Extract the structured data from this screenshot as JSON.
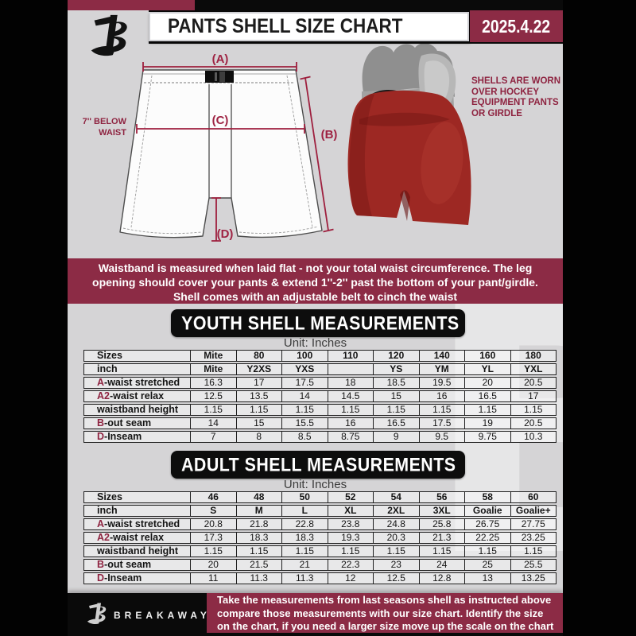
{
  "header": {
    "title": "PANTS SHELL SIZE CHART",
    "date": "2025.4.22"
  },
  "diagram": {
    "label_a": "(A)",
    "label_b": "(B)",
    "label_c": "(C)",
    "label_d": "(D)",
    "below_waist_note": "7'' BELOW WAIST",
    "side_note": "SHELLS ARE WORN OVER HOCKEY EQUIPMENT PANTS OR GIRDLE"
  },
  "info_banner": {
    "lines": [
      "Waistband is measured when laid flat - not your total waist circumference. The leg",
      "opening should cover your pants & extend 1''-2'' past the bottom of your pant/girdle.",
      "Shell comes with an adjustable belt to cinch the waist"
    ]
  },
  "youth_section": {
    "title": "YOUTH SHELL MEASUREMENTS",
    "unit": "Unit: Inches"
  },
  "adult_section": {
    "title": "ADULT SHELL MEASUREMENTS",
    "unit": "Unit: Inches"
  },
  "youth_table": {
    "rows": [
      {
        "prefix": "",
        "label": "Sizes",
        "bold": true,
        "cells": [
          "Mite",
          "80",
          "100",
          "110",
          "120",
          "140",
          "160",
          "180"
        ]
      },
      {
        "prefix": "",
        "label": "inch",
        "bold": true,
        "cells": [
          "Mite",
          "Y2XS",
          "YXS",
          "",
          "YS",
          "YM",
          "YL",
          "YXL"
        ]
      },
      {
        "prefix": "A",
        "label": "-waist stretched",
        "cells": [
          "16.3",
          "17",
          "17.5",
          "18",
          "18.5",
          "19.5",
          "20",
          "20.5"
        ]
      },
      {
        "prefix": "A2",
        "label": "-waist relax",
        "cells": [
          "12.5",
          "13.5",
          "14",
          "14.5",
          "15",
          "16",
          "16.5",
          "17"
        ]
      },
      {
        "prefix": "",
        "label": "waistband height",
        "cells": [
          "1.15",
          "1.15",
          "1.15",
          "1.15",
          "1.15",
          "1.15",
          "1.15",
          "1.15"
        ]
      },
      {
        "prefix": "B",
        "label": "-out seam",
        "cells": [
          "14",
          "15",
          "15.5",
          "16",
          "16.5",
          "17.5",
          "19",
          "20.5"
        ]
      },
      {
        "prefix": "D",
        "label": "-Inseam",
        "cells": [
          "7",
          "8",
          "8.5",
          "8.75",
          "9",
          "9.5",
          "9.75",
          "10.3"
        ]
      }
    ]
  },
  "adult_table": {
    "rows": [
      {
        "prefix": "",
        "label": "Sizes",
        "bold": true,
        "cells": [
          "46",
          "48",
          "50",
          "52",
          "54",
          "56",
          "58",
          "60"
        ]
      },
      {
        "prefix": "",
        "label": "inch",
        "bold": true,
        "cells": [
          "S",
          "M",
          "L",
          "XL",
          "2XL",
          "3XL",
          "Goalie",
          "Goalie+"
        ]
      },
      {
        "prefix": "A",
        "label": "-waist stretched",
        "cells": [
          "20.8",
          "21.8",
          "22.8",
          "23.8",
          "24.8",
          "25.8",
          "26.75",
          "27.75"
        ]
      },
      {
        "prefix": "A2",
        "label": "-waist relax",
        "cells": [
          "17.3",
          "18.3",
          "18.3",
          "19.3",
          "20.3",
          "21.3",
          "22.25",
          "23.25"
        ]
      },
      {
        "prefix": "",
        "label": "waistband height",
        "cells": [
          "1.15",
          "1.15",
          "1.15",
          "1.15",
          "1.15",
          "1.15",
          "1.15",
          "1.15"
        ]
      },
      {
        "prefix": "B",
        "label": "-out seam",
        "cells": [
          "20",
          "21.5",
          "21",
          "22.3",
          "23",
          "24",
          "25",
          "25.5"
        ]
      },
      {
        "prefix": "D",
        "label": "-Inseam",
        "cells": [
          "11",
          "11.3",
          "11.3",
          "12",
          "12.5",
          "12.8",
          "13",
          "13.25"
        ]
      }
    ]
  },
  "footer": {
    "brand": "BREAKAWAY",
    "lines": [
      "Take the measurements from last seasons shell as instructed above",
      "compare those measurements  with our size chart. Identify the size",
      "on the chart, if you need a larger size move up the scale on the chart"
    ]
  },
  "watermark_letter": "B",
  "colors": {
    "maroon": "#8c2b45",
    "measure_line": "#9e1f3e",
    "page_black": "#0a0a0a",
    "content_gray": "#d5d4d6",
    "shell_red": "#9d2823"
  }
}
